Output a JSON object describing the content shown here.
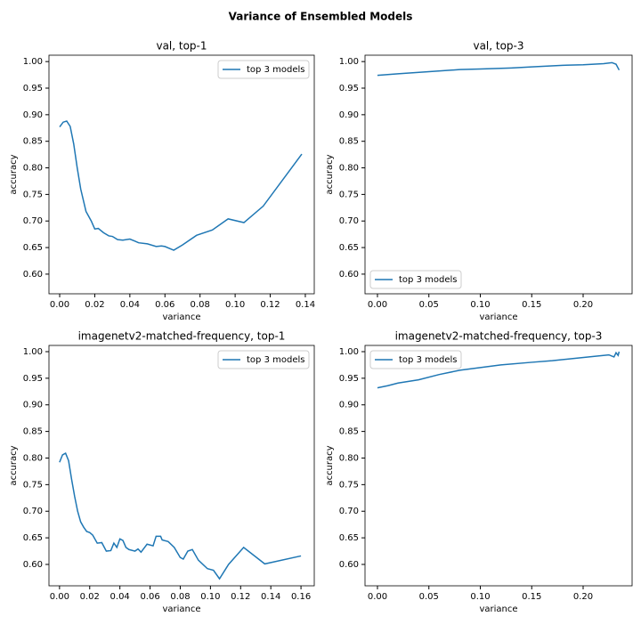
{
  "title": "Variance of Ensembled Models",
  "chart_data": [
    {
      "type": "line",
      "title": "val, top-1",
      "x_label": "variance",
      "y_label": "accuracy",
      "legend": "upper right",
      "x": [
        0,
        0.002,
        0.004,
        0.006,
        0.008,
        0.01,
        0.012,
        0.015,
        0.018,
        0.02,
        0.022,
        0.025,
        0.028,
        0.03,
        0.033,
        0.036,
        0.04,
        0.043,
        0.045,
        0.05,
        0.055,
        0.058,
        0.06,
        0.065,
        0.07,
        0.078,
        0.087,
        0.096,
        0.105,
        0.116,
        0.138
      ],
      "series": [
        {
          "name": "top 3 models",
          "color": "#1f77b4",
          "values": [
            0.877,
            0.886,
            0.888,
            0.878,
            0.845,
            0.8,
            0.76,
            0.718,
            0.7,
            0.685,
            0.686,
            0.678,
            0.672,
            0.671,
            0.665,
            0.664,
            0.666,
            0.662,
            0.659,
            0.657,
            0.652,
            0.653,
            0.652,
            0.645,
            0.655,
            0.673,
            0.683,
            0.704,
            0.697,
            0.728,
            0.826
          ]
        }
      ],
      "xlim": [
        -0.0061,
        0.1451
      ],
      "ylim": [
        0.563,
        1.012
      ],
      "xticks": [
        {
          "value": 0,
          "label": "0.00"
        },
        {
          "value": 0.02,
          "label": "0.02"
        },
        {
          "value": 0.04,
          "label": "0.04"
        },
        {
          "value": 0.06,
          "label": "0.06"
        },
        {
          "value": 0.08,
          "label": "0.08"
        },
        {
          "value": 0.1,
          "label": "0.10"
        },
        {
          "value": 0.12,
          "label": "0.12"
        },
        {
          "value": 0.14,
          "label": "0.14"
        }
      ],
      "yticks": [
        {
          "value": 0.6,
          "label": "0.60"
        },
        {
          "value": 0.65,
          "label": "0.65"
        },
        {
          "value": 0.7,
          "label": "0.70"
        },
        {
          "value": 0.75,
          "label": "0.75"
        },
        {
          "value": 0.8,
          "label": "0.80"
        },
        {
          "value": 0.85,
          "label": "0.85"
        },
        {
          "value": 0.9,
          "label": "0.90"
        },
        {
          "value": 0.95,
          "label": "0.95"
        },
        {
          "value": 1,
          "label": "1.00"
        }
      ]
    },
    {
      "type": "line",
      "title": "val, top-3",
      "x_label": "variance",
      "y_label": "accuracy",
      "legend": "lower left",
      "x": [
        0,
        0.02,
        0.05,
        0.08,
        0.1,
        0.13,
        0.15,
        0.18,
        0.2,
        0.22,
        0.228,
        0.232,
        0.235
      ],
      "series": [
        {
          "name": "top 3 models",
          "color": "#1f77b4",
          "values": [
            0.974,
            0.977,
            0.981,
            0.985,
            0.986,
            0.988,
            0.99,
            0.993,
            0.994,
            0.996,
            0.998,
            0.995,
            0.984
          ]
        }
      ],
      "xlim": [
        -0.0121,
        0.2476
      ],
      "ylim": [
        0.563,
        1.012
      ],
      "xticks": [
        {
          "value": 0,
          "label": "0.00"
        },
        {
          "value": 0.05,
          "label": "0.05"
        },
        {
          "value": 0.1,
          "label": "0.10"
        },
        {
          "value": 0.15,
          "label": "0.15"
        },
        {
          "value": 0.2,
          "label": "0.20"
        }
      ],
      "yticks": [
        {
          "value": 0.6,
          "label": "0.60"
        },
        {
          "value": 0.65,
          "label": "0.65"
        },
        {
          "value": 0.7,
          "label": "0.70"
        },
        {
          "value": 0.75,
          "label": "0.75"
        },
        {
          "value": 0.8,
          "label": "0.80"
        },
        {
          "value": 0.85,
          "label": "0.85"
        },
        {
          "value": 0.9,
          "label": "0.90"
        },
        {
          "value": 0.95,
          "label": "0.95"
        },
        {
          "value": 1,
          "label": "1.00"
        }
      ]
    },
    {
      "type": "line",
      "title": "imagenetv2-matched-frequency, top-1",
      "x_label": "variance",
      "y_label": "accuracy",
      "legend": "upper right",
      "x": [
        0,
        0.002,
        0.004,
        0.006,
        0.008,
        0.01,
        0.012,
        0.014,
        0.016,
        0.018,
        0.02,
        0.022,
        0.025,
        0.028,
        0.031,
        0.034,
        0.036,
        0.038,
        0.04,
        0.042,
        0.044,
        0.046,
        0.05,
        0.052,
        0.054,
        0.058,
        0.062,
        0.064,
        0.067,
        0.068,
        0.072,
        0.076,
        0.08,
        0.082,
        0.085,
        0.088,
        0.092,
        0.098,
        0.102,
        0.106,
        0.112,
        0.122,
        0.136,
        0.16
      ],
      "series": [
        {
          "name": "top 3 models",
          "color": "#1f77b4",
          "values": [
            0.792,
            0.806,
            0.809,
            0.795,
            0.76,
            0.728,
            0.7,
            0.68,
            0.67,
            0.662,
            0.66,
            0.655,
            0.64,
            0.641,
            0.625,
            0.626,
            0.64,
            0.632,
            0.648,
            0.645,
            0.632,
            0.628,
            0.625,
            0.629,
            0.623,
            0.638,
            0.635,
            0.653,
            0.653,
            0.646,
            0.643,
            0.632,
            0.613,
            0.61,
            0.625,
            0.628,
            0.608,
            0.592,
            0.589,
            0.573,
            0.6,
            0.632,
            0.601,
            0.616
          ]
        }
      ],
      "xlim": [
        -0.007,
        0.1688
      ],
      "ylim": [
        0.5598,
        1.0117
      ],
      "xticks": [
        {
          "value": 0,
          "label": "0.00"
        },
        {
          "value": 0.02,
          "label": "0.02"
        },
        {
          "value": 0.04,
          "label": "0.04"
        },
        {
          "value": 0.06,
          "label": "0.06"
        },
        {
          "value": 0.08,
          "label": "0.08"
        },
        {
          "value": 0.1,
          "label": "0.10"
        },
        {
          "value": 0.12,
          "label": "0.12"
        },
        {
          "value": 0.14,
          "label": "0.14"
        },
        {
          "value": 0.16,
          "label": "0.16"
        }
      ],
      "yticks": [
        {
          "value": 0.6,
          "label": "0.60"
        },
        {
          "value": 0.65,
          "label": "0.65"
        },
        {
          "value": 0.7,
          "label": "0.70"
        },
        {
          "value": 0.75,
          "label": "0.75"
        },
        {
          "value": 0.8,
          "label": "0.80"
        },
        {
          "value": 0.85,
          "label": "0.85"
        },
        {
          "value": 0.9,
          "label": "0.90"
        },
        {
          "value": 0.95,
          "label": "0.95"
        },
        {
          "value": 1,
          "label": "1.00"
        }
      ]
    },
    {
      "type": "line",
      "title": "imagenetv2-matched-frequency, top-3",
      "x_label": "variance",
      "y_label": "accuracy",
      "legend": "upper left",
      "x": [
        0,
        0.01,
        0.02,
        0.04,
        0.06,
        0.08,
        0.1,
        0.12,
        0.15,
        0.17,
        0.19,
        0.21,
        0.225,
        0.23,
        0.232,
        0.234,
        0.235
      ],
      "series": [
        {
          "name": "top 3 models",
          "color": "#1f77b4",
          "values": [
            0.932,
            0.936,
            0.941,
            0.947,
            0.957,
            0.965,
            0.97,
            0.975,
            0.98,
            0.983,
            0.987,
            0.991,
            0.994,
            0.99,
            0.998,
            0.993,
            1.0
          ]
        }
      ],
      "xlim": [
        -0.0121,
        0.2476
      ],
      "ylim": [
        0.5598,
        1.0117
      ],
      "xticks": [
        {
          "value": 0,
          "label": "0.00"
        },
        {
          "value": 0.05,
          "label": "0.05"
        },
        {
          "value": 0.1,
          "label": "0.10"
        },
        {
          "value": 0.15,
          "label": "0.15"
        },
        {
          "value": 0.2,
          "label": "0.20"
        }
      ],
      "yticks": [
        {
          "value": 0.6,
          "label": "0.60"
        },
        {
          "value": 0.65,
          "label": "0.65"
        },
        {
          "value": 0.7,
          "label": "0.70"
        },
        {
          "value": 0.75,
          "label": "0.75"
        },
        {
          "value": 0.8,
          "label": "0.80"
        },
        {
          "value": 0.85,
          "label": "0.85"
        },
        {
          "value": 0.9,
          "label": "0.90"
        },
        {
          "value": 0.95,
          "label": "0.95"
        },
        {
          "value": 1,
          "label": "1.00"
        }
      ]
    }
  ]
}
